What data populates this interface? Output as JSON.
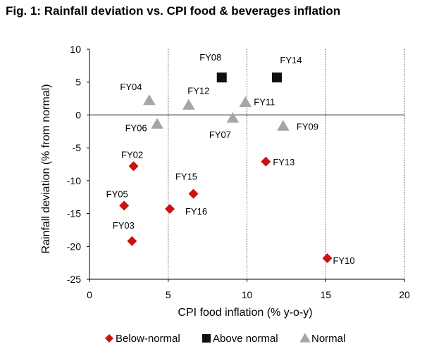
{
  "chart_data": {
    "type": "scatter",
    "title": "Fig. 1: Rainfall deviation vs. CPI food & beverages inflation",
    "xlabel": "CPI food inflation (% y-o-y)",
    "ylabel": "Rainfall deviation (% from normal)",
    "xlim": [
      0,
      20
    ],
    "ylim": [
      -25,
      10
    ],
    "xticks": [
      0,
      5,
      10,
      15,
      20
    ],
    "yticks": [
      10,
      5,
      0,
      -5,
      -10,
      -15,
      -20,
      -25
    ],
    "legend_position": "bottom",
    "series": [
      {
        "name": "Below-normal",
        "marker": "diamond",
        "color": "#cc1111",
        "points": [
          {
            "label": "FY02",
            "x": 2.8,
            "y": -7.8
          },
          {
            "label": "FY05",
            "x": 2.2,
            "y": -13.8
          },
          {
            "label": "FY03",
            "x": 2.7,
            "y": -19.2
          },
          {
            "label": "FY15",
            "x": 6.6,
            "y": -12.0
          },
          {
            "label": "FY16",
            "x": 5.1,
            "y": -14.3
          },
          {
            "label": "FY13",
            "x": 11.2,
            "y": -7.1
          },
          {
            "label": "FY10",
            "x": 15.1,
            "y": -21.8
          }
        ]
      },
      {
        "name": "Above normal",
        "marker": "square",
        "color": "#111111",
        "points": [
          {
            "label": "FY08",
            "x": 8.4,
            "y": 5.7
          },
          {
            "label": "FY14",
            "x": 11.9,
            "y": 5.7
          }
        ]
      },
      {
        "name": "Normal",
        "marker": "triangle",
        "color": "#a6a6a6",
        "points": [
          {
            "label": "FY04",
            "x": 3.8,
            "y": 2.2
          },
          {
            "label": "FY12",
            "x": 6.3,
            "y": 1.5
          },
          {
            "label": "FY06",
            "x": 4.3,
            "y": -1.4
          },
          {
            "label": "FY07",
            "x": 9.1,
            "y": -0.5
          },
          {
            "label": "FY11",
            "x": 9.9,
            "y": 1.9
          },
          {
            "label": "FY09",
            "x": 12.3,
            "y": -1.7
          }
        ]
      }
    ]
  }
}
